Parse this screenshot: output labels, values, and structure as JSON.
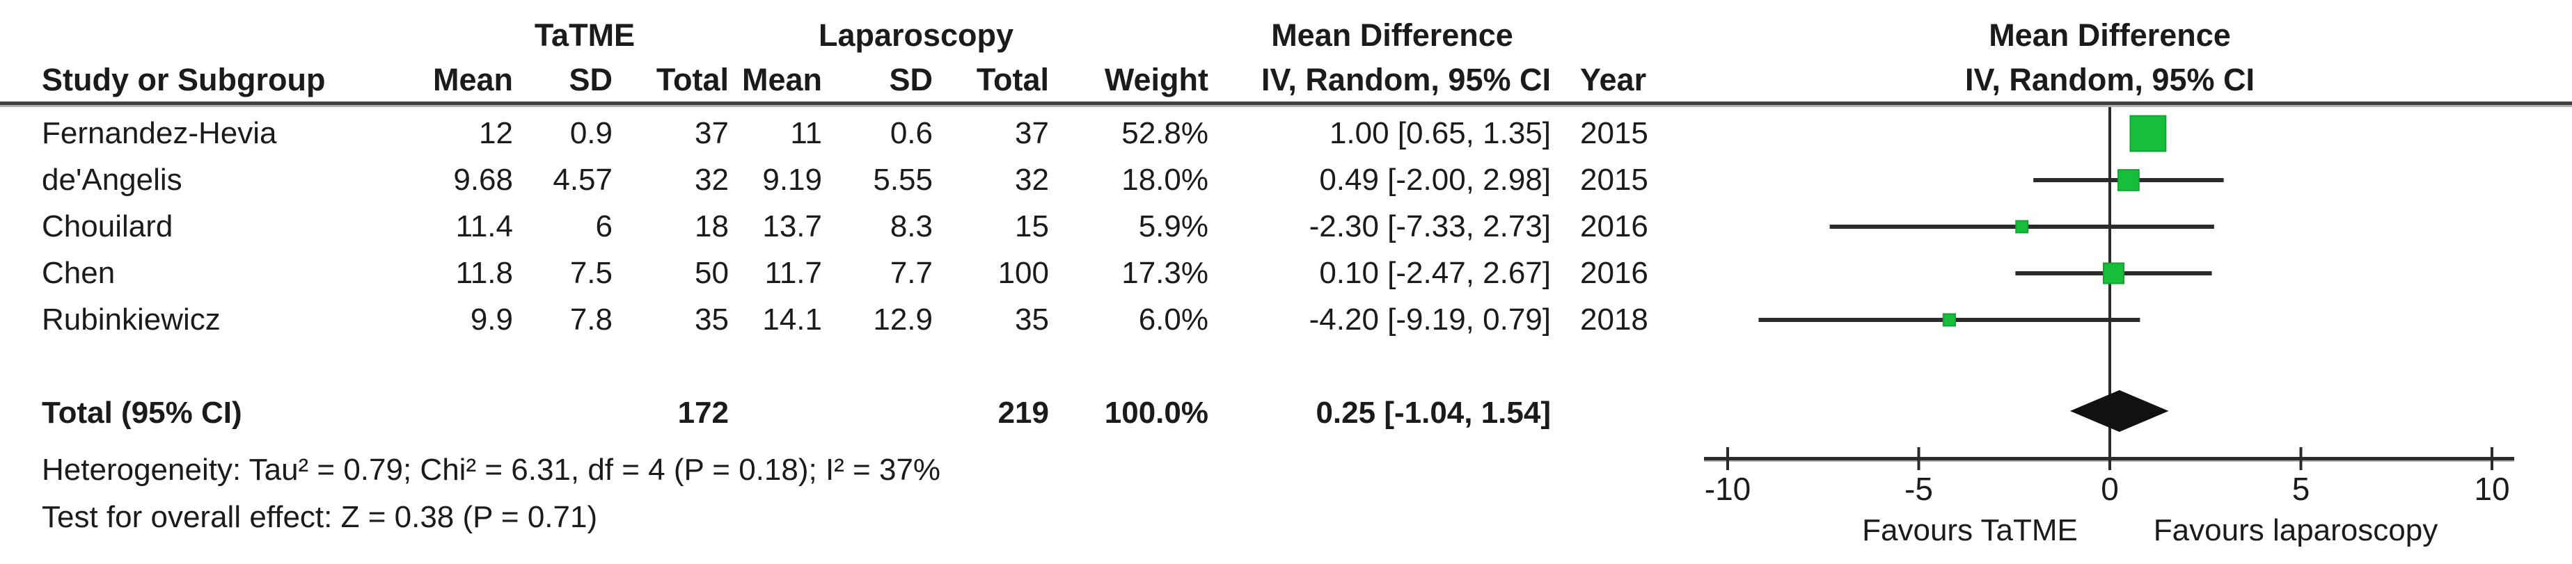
{
  "table": {
    "group1": "TaTME",
    "group2": "Laparoscopy",
    "md_header": {
      "line1": "Mean Difference",
      "line2": "IV, Random, 95% CI"
    },
    "header": {
      "study": "Study or Subgroup",
      "mean": "Mean",
      "sd": "SD",
      "total": "Total",
      "weight": "Weight",
      "year": "Year"
    },
    "rows": [
      {
        "study": "Fernandez-Hevia",
        "t_mean": "12",
        "t_sd": "0.9",
        "t_total": "37",
        "l_mean": "11",
        "l_sd": "0.6",
        "l_total": "37",
        "weight": "52.8%",
        "ci": "1.00 [0.65, 1.35]",
        "year": "2015"
      },
      {
        "study": "de'Angelis",
        "t_mean": "9.68",
        "t_sd": "4.57",
        "t_total": "32",
        "l_mean": "9.19",
        "l_sd": "5.55",
        "l_total": "32",
        "weight": "18.0%",
        "ci": "0.49 [-2.00, 2.98]",
        "year": "2015"
      },
      {
        "study": "Chouilard",
        "t_mean": "11.4",
        "t_sd": "6",
        "t_total": "18",
        "l_mean": "13.7",
        "l_sd": "8.3",
        "l_total": "15",
        "weight": "5.9%",
        "ci": "-2.30 [-7.33, 2.73]",
        "year": "2016"
      },
      {
        "study": "Chen",
        "t_mean": "11.8",
        "t_sd": "7.5",
        "t_total": "50",
        "l_mean": "11.7",
        "l_sd": "7.7",
        "l_total": "100",
        "weight": "17.3%",
        "ci": "0.10 [-2.47, 2.67]",
        "year": "2016"
      },
      {
        "study": "Rubinkiewicz",
        "t_mean": "9.9",
        "t_sd": "7.8",
        "t_total": "35",
        "l_mean": "14.1",
        "l_sd": "12.9",
        "l_total": "35",
        "weight": "6.0%",
        "ci": "-4.20 [-9.19, 0.79]",
        "year": "2018"
      }
    ],
    "total": {
      "label": "Total (95% CI)",
      "t_total": "172",
      "l_total": "219",
      "weight": "100.0%",
      "ci": "0.25 [-1.04, 1.54]"
    },
    "footnotes": {
      "heterogeneity": "Heterogeneity: Tau² = 0.79; Chi² = 6.31, df = 4 (P = 0.18); I² = 37%",
      "overall_effect": "Test for overall effect: Z = 0.38 (P = 0.71)"
    }
  },
  "plot": {
    "header_line1": "Mean Difference",
    "header_line2": "IV, Random, 95% CI",
    "tick_labels": [
      "-10",
      "-5",
      "0",
      "5",
      "10"
    ],
    "favours_left": "Favours TaTME",
    "favours_right": "Favours laparoscopy",
    "colors": {
      "marker_fill": "#17BE3C",
      "marker_stroke": "#0FA52F",
      "line": "#2b2b2b",
      "diamond": "#111111",
      "rule_dark": "#3e3e3e",
      "rule_light": "#b3b3b3"
    }
  },
  "chart_data": {
    "type": "forest",
    "effect_measure": "Mean Difference",
    "model": "IV, Random, 95% CI",
    "studies": [
      {
        "name": "Fernandez-Hevia",
        "year": 2015,
        "md": 1.0,
        "ci_low": 0.65,
        "ci_high": 1.35,
        "weight_pct": 52.8
      },
      {
        "name": "de'Angelis",
        "year": 2015,
        "md": 0.49,
        "ci_low": -2.0,
        "ci_high": 2.98,
        "weight_pct": 18.0
      },
      {
        "name": "Chouilard",
        "year": 2016,
        "md": -2.3,
        "ci_low": -7.33,
        "ci_high": 2.73,
        "weight_pct": 5.9
      },
      {
        "name": "Chen",
        "year": 2016,
        "md": 0.1,
        "ci_low": -2.47,
        "ci_high": 2.67,
        "weight_pct": 17.3
      },
      {
        "name": "Rubinkiewicz",
        "year": 2018,
        "md": -4.2,
        "ci_low": -9.19,
        "ci_high": 0.79,
        "weight_pct": 6.0
      }
    ],
    "overall": {
      "label": "Total (95% CI)",
      "md": 0.25,
      "ci_low": -1.04,
      "ci_high": 1.54,
      "weight_pct": 100.0
    },
    "x_axis": {
      "min": -10,
      "max": 10,
      "ticks": [
        -10,
        -5,
        0,
        5,
        10
      ],
      "label_left": "Favours TaTME",
      "label_right": "Favours laparoscopy"
    }
  }
}
